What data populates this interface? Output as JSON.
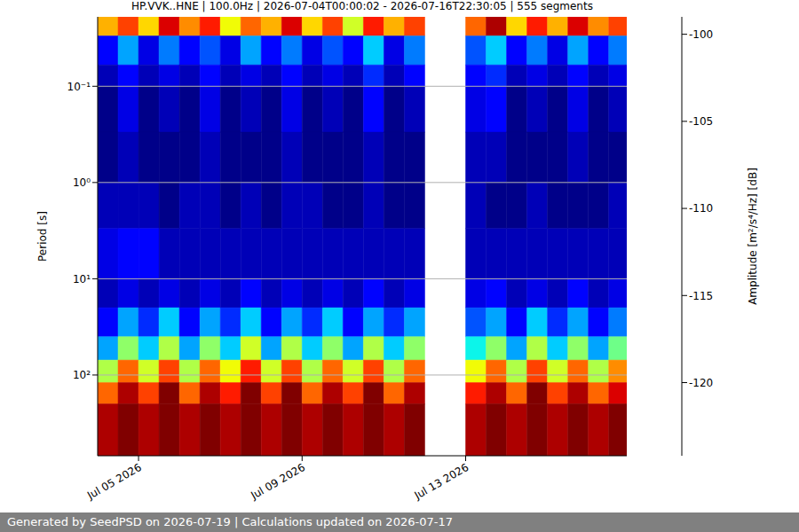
{
  "chart_data": {
    "type": "heatmap",
    "title": "HP.VVK..HNE | 100.0Hz | 2026-07-04T00:00:02 - 2026-07-16T22:30:05 | 555 segments",
    "ylabel": "Period [s]",
    "footer": "Generated by SeedPSD on 2026-07-19 | Calculations updated on 2026-07-17",
    "log": "y",
    "grid": "y",
    "xlim": [
      4.0,
      16.94
    ],
    "xticks": [
      {
        "value": 5,
        "label": "Jul 05 2026"
      },
      {
        "value": 9,
        "label": "Jul 09 2026"
      },
      {
        "value": 13,
        "label": "Jul 13 2026"
      }
    ],
    "ylim": [
      0.019,
      690
    ],
    "yticks": [
      {
        "value": 0.1,
        "label": "10⁻¹"
      },
      {
        "value": 1,
        "label": "10⁰"
      },
      {
        "value": 10,
        "label": "10¹"
      },
      {
        "value": 100,
        "label": "10²"
      }
    ],
    "x_bins": [
      4.0,
      4.5,
      5.0,
      5.5,
      6.0,
      6.5,
      7.0,
      7.5,
      8.0,
      8.5,
      9.0,
      9.5,
      10.0,
      10.5,
      11.0,
      11.5,
      12.0,
      12.5,
      13.0,
      13.5,
      14.0,
      14.5,
      15.0,
      15.5,
      16.0,
      16.5,
      16.94
    ],
    "y_bins": [
      0.019,
      0.03,
      0.06,
      0.1,
      0.3,
      1,
      3,
      10,
      20,
      40,
      70,
      120,
      200,
      690
    ],
    "values": [
      [
        -106,
        -103,
        -107,
        -101,
        -105,
        -102,
        -108,
        -104,
        -106,
        -101,
        -107,
        -103,
        -109,
        -102,
        -106,
        -103,
        null,
        null,
        -104,
        -100,
        -107,
        -102,
        -106,
        -101,
        -105,
        -103
      ],
      [
        -121,
        -117,
        -122,
        -118,
        -121,
        -119,
        -122,
        -117,
        -121,
        -118,
        -122,
        -119,
        -121,
        -116,
        -122,
        -118,
        null,
        null,
        -119,
        -116,
        -121,
        -118,
        -122,
        -117,
        -121,
        -118
      ],
      [
        -123,
        -121,
        -123,
        -122,
        -123,
        -121,
        -123,
        -122,
        -123,
        -121,
        -123,
        -122,
        -123,
        -120,
        -123,
        -121,
        null,
        null,
        -121,
        -120,
        -123,
        -122,
        -123,
        -121,
        -123,
        -122
      ],
      [
        -124,
        -122,
        -124,
        -123,
        -124,
        -122,
        -124,
        -123,
        -124,
        -122,
        -124,
        -123,
        -124,
        -121,
        -124,
        -123,
        null,
        null,
        -122,
        -121,
        -124,
        -123,
        -124,
        -122,
        -124,
        -123
      ],
      [
        -124,
        -123,
        -124,
        -124,
        -124,
        -123,
        -124,
        -124,
        -124,
        -123,
        -124,
        -124,
        -124,
        -123,
        -124,
        -124,
        null,
        null,
        -123,
        -123,
        -124,
        -124,
        -124,
        -123,
        -124,
        -124
      ],
      [
        -123,
        -123,
        -123,
        -124,
        -123,
        -123,
        -124,
        -123,
        -124,
        -123,
        -123,
        -124,
        -124,
        -123,
        -124,
        -124,
        null,
        null,
        -123,
        -124,
        -124,
        -123,
        -124,
        -124,
        -124,
        -123
      ],
      [
        -122,
        -121,
        -121,
        -123,
        -123,
        -123,
        -123,
        -123,
        -123,
        -123,
        -123,
        -123,
        -123,
        -123,
        -123,
        -123,
        null,
        null,
        -123,
        -123,
        -123,
        -123,
        -123,
        -123,
        -123,
        -123
      ],
      [
        -123,
        -122,
        -123,
        -122,
        -123,
        -122,
        -123,
        -121,
        -123,
        -122,
        -123,
        -122,
        -123,
        -121,
        -123,
        -122,
        null,
        null,
        -122,
        -121,
        -123,
        -122,
        -123,
        -121,
        -123,
        -122
      ],
      [
        -121,
        -117,
        -120,
        -116,
        -121,
        -117,
        -120,
        -116,
        -121,
        -117,
        -120,
        -116,
        -121,
        -117,
        -120,
        -117,
        null,
        null,
        -119,
        -117,
        -121,
        -116,
        -120,
        -117,
        -121,
        -118
      ],
      [
        -117,
        -111,
        -116,
        -110,
        -117,
        -111,
        -116,
        -109,
        -117,
        -110,
        -116,
        -111,
        -117,
        -110,
        -116,
        -111,
        null,
        null,
        -115,
        -111,
        -117,
        -110,
        -116,
        -111,
        -117,
        -112
      ],
      [
        -110,
        -104,
        -109,
        -103,
        -110,
        -104,
        -108,
        -102,
        -109,
        -103,
        -110,
        -104,
        -109,
        -103,
        -110,
        -104,
        null,
        null,
        -108,
        -104,
        -110,
        -103,
        -109,
        -104,
        -110,
        -105
      ],
      [
        -104,
        -100,
        -103,
        -99,
        -104,
        -100,
        -102,
        -99,
        -103,
        -99,
        -104,
        -100,
        -103,
        -99,
        -104,
        -100,
        null,
        null,
        -102,
        -100,
        -104,
        -99,
        -103,
        -100,
        -104,
        -101
      ],
      [
        -100,
        -99,
        -100,
        -99,
        -100,
        -99,
        -100,
        -99,
        -100,
        -99,
        -100,
        -99,
        -100,
        -99,
        -100,
        -99,
        null,
        null,
        -100,
        -99,
        -100,
        -99,
        -100,
        -99,
        -100,
        -99
      ]
    ],
    "colorbar": {
      "label": "Amplitude [m²/s⁴/Hz] [dB]",
      "range": [
        -124.2,
        -99
      ],
      "ticks": [
        -100,
        -105,
        -110,
        -115,
        -120
      ]
    }
  }
}
